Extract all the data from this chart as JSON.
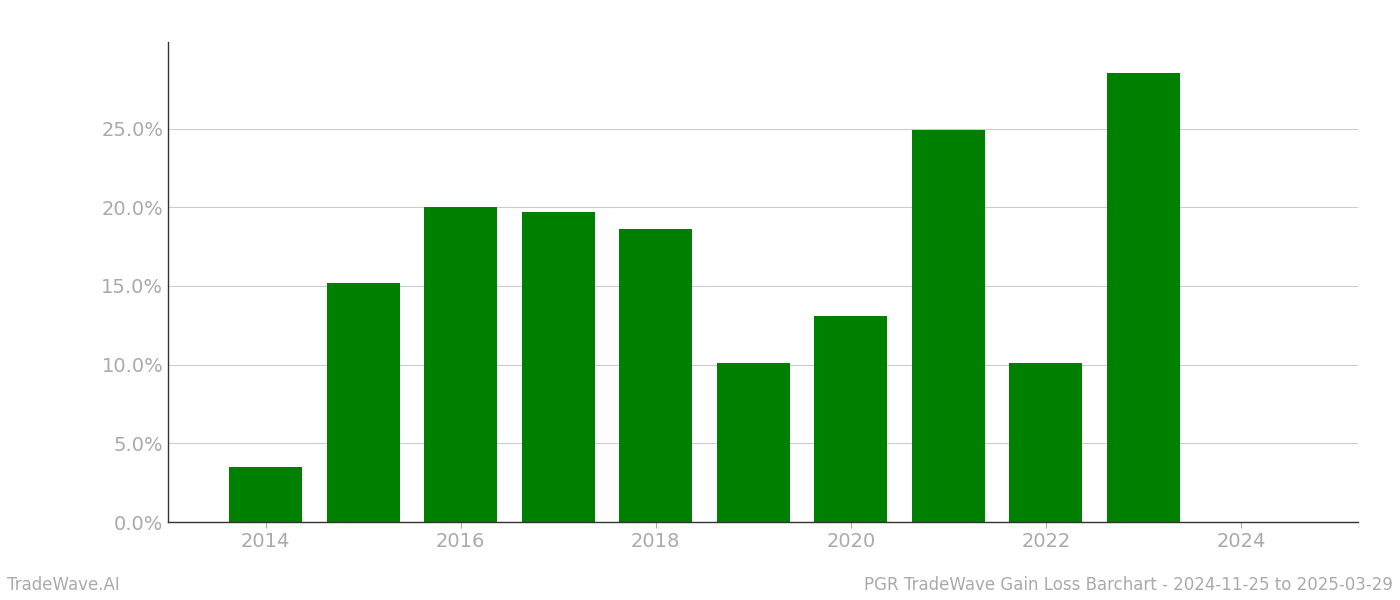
{
  "years": [
    2014,
    2015,
    2016,
    2017,
    2018,
    2019,
    2020,
    2021,
    2022,
    2023
  ],
  "values": [
    0.035,
    0.152,
    0.2,
    0.197,
    0.186,
    0.101,
    0.131,
    0.249,
    0.101,
    0.285
  ],
  "bar_color": "#008000",
  "background_color": "#ffffff",
  "grid_color": "#cccccc",
  "ylim": [
    0,
    0.305
  ],
  "yticks": [
    0.0,
    0.05,
    0.1,
    0.15,
    0.2,
    0.25
  ],
  "xlim": [
    2013.0,
    2025.2
  ],
  "xticks": [
    2014,
    2016,
    2018,
    2020,
    2022,
    2024
  ],
  "footer_left": "TradeWave.AI",
  "footer_right": "PGR TradeWave Gain Loss Barchart - 2024-11-25 to 2025-03-29",
  "footer_color": "#aaaaaa",
  "footer_fontsize": 12,
  "bar_width": 0.75,
  "axis_label_fontsize": 14,
  "tick_color": "#aaaaaa",
  "spine_color": "#333333"
}
